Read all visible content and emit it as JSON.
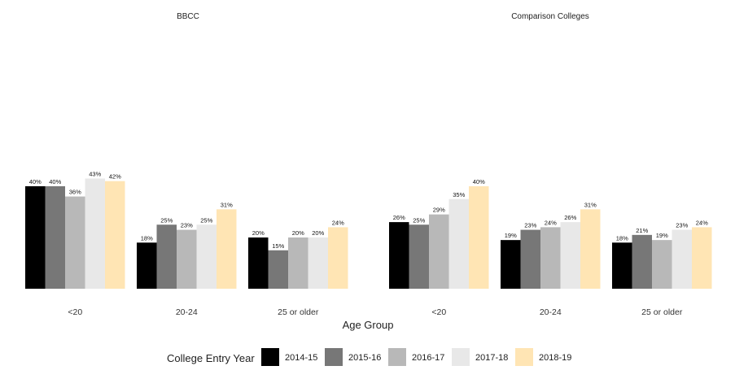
{
  "chart_data": {
    "type": "bar",
    "xlabel": "Age Group",
    "legend_title": "College Entry Year",
    "legend_position": "bottom",
    "grid": false,
    "ylim": [
      0,
      70
    ],
    "categories": [
      "<20",
      "20-24",
      "25 or older"
    ],
    "series_names": [
      "2014-15",
      "2015-16",
      "2016-17",
      "2017-18",
      "2018-19"
    ],
    "colors": [
      "#000000",
      "#777777",
      "#b8b8b8",
      "#e8e8e8",
      "#ffe5b4"
    ],
    "facets": [
      {
        "title": "BBCC",
        "values": [
          [
            40,
            40,
            36,
            43,
            42
          ],
          [
            18,
            25,
            23,
            25,
            31
          ],
          [
            20,
            15,
            20,
            20,
            24
          ]
        ]
      },
      {
        "title": "Comparison Colleges",
        "values": [
          [
            26,
            25,
            29,
            35,
            40
          ],
          [
            19,
            23,
            24,
            26,
            31
          ],
          [
            18,
            21,
            19,
            23,
            24
          ]
        ]
      }
    ]
  }
}
